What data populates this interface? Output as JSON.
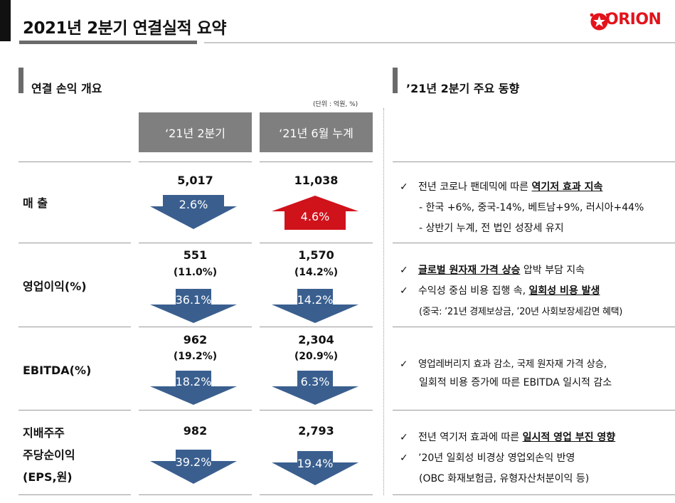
{
  "header": {
    "title": "2021년 2분기 연결실적 요약",
    "logo_text": "ORION",
    "brand_color": "#e3131b"
  },
  "left_section": {
    "title": "연결 손익 개요",
    "unit_note": "(단위 : 억원, %)",
    "columns": [
      "‘21년 2분기",
      "‘21년 6월 누계"
    ],
    "rows": [
      {
        "label_lines": [
          "매 출"
        ],
        "q2": {
          "value": "5,017",
          "sub": "",
          "change": "2.6%",
          "direction": "down"
        },
        "ytd": {
          "value": "11,038",
          "sub": "",
          "change": "4.6%",
          "direction": "up"
        }
      },
      {
        "label_lines": [
          "영업이익(%)"
        ],
        "q2": {
          "value": "551",
          "sub": "(11.0%)",
          "change": "36.1%",
          "direction": "down"
        },
        "ytd": {
          "value": "1,570",
          "sub": "(14.2%)",
          "change": "14.2%",
          "direction": "down"
        }
      },
      {
        "label_lines": [
          "EBITDA(%)"
        ],
        "q2": {
          "value": "962",
          "sub": "(19.2%)",
          "change": "18.2%",
          "direction": "down"
        },
        "ytd": {
          "value": "2,304",
          "sub": "(20.9%)",
          "change": "6.3%",
          "direction": "down"
        }
      },
      {
        "label_lines": [
          "지배주주",
          "주당순이익",
          "(EPS,원)"
        ],
        "q2": {
          "value": "982",
          "sub": "",
          "change": "39.2%",
          "direction": "down"
        },
        "ytd": {
          "value": "2,793",
          "sub": "",
          "change": "19.4%",
          "direction": "down"
        }
      }
    ],
    "colors": {
      "down_arrow": "#3a5f8f",
      "up_arrow": "#d0121b",
      "column_header": "#7f7f7f"
    }
  },
  "right_section": {
    "title": "’21년 2분기 주요 동향",
    "check_mark": "✓",
    "blocks": [
      {
        "lines": [
          {
            "type": "check",
            "pre": "전년 코로나 팬데믹에 따른 ",
            "bold": "역기저 효과 지속",
            "post": ""
          },
          {
            "type": "sub",
            "text": "- 한국 +6%, 중국-14%, 베트남+9%, 러시아+44%"
          },
          {
            "type": "sub",
            "text": "- 상반기 누계, 전 법인 성장세 유지"
          }
        ]
      },
      {
        "lines": [
          {
            "type": "check",
            "pre": "",
            "bold": "글로벌 원자재 가격 상승",
            "post": " 압박 부담 지속"
          },
          {
            "type": "check",
            "pre": "수익성 중심 비용 집행 속, ",
            "bold": "일회성 비용 발생",
            "post": ""
          },
          {
            "type": "sub",
            "text": "(중국: ’21년 경제보상금, ’20년 사회보장세감면 혜택)"
          }
        ]
      },
      {
        "lines": [
          {
            "type": "check",
            "pre": "영업레버리지 효과 감소, 국제 원자재 가격 상승,",
            "bold": "",
            "post": ""
          },
          {
            "type": "sub",
            "text": "일회적 비용 증가에 따른 EBITDA 일시적 감소"
          }
        ]
      },
      {
        "lines": [
          {
            "type": "check",
            "pre": "전년 역기저 효과에 따른 ",
            "bold": "일시적 영업 부진 영향",
            "post": ""
          },
          {
            "type": "check",
            "pre": "’20년 일회성 비경상 영업외손익 반영",
            "bold": "",
            "post": ""
          },
          {
            "type": "sub",
            "text": "(OBC 화재보험금, 유형자산처분이익 등)"
          }
        ]
      }
    ]
  }
}
